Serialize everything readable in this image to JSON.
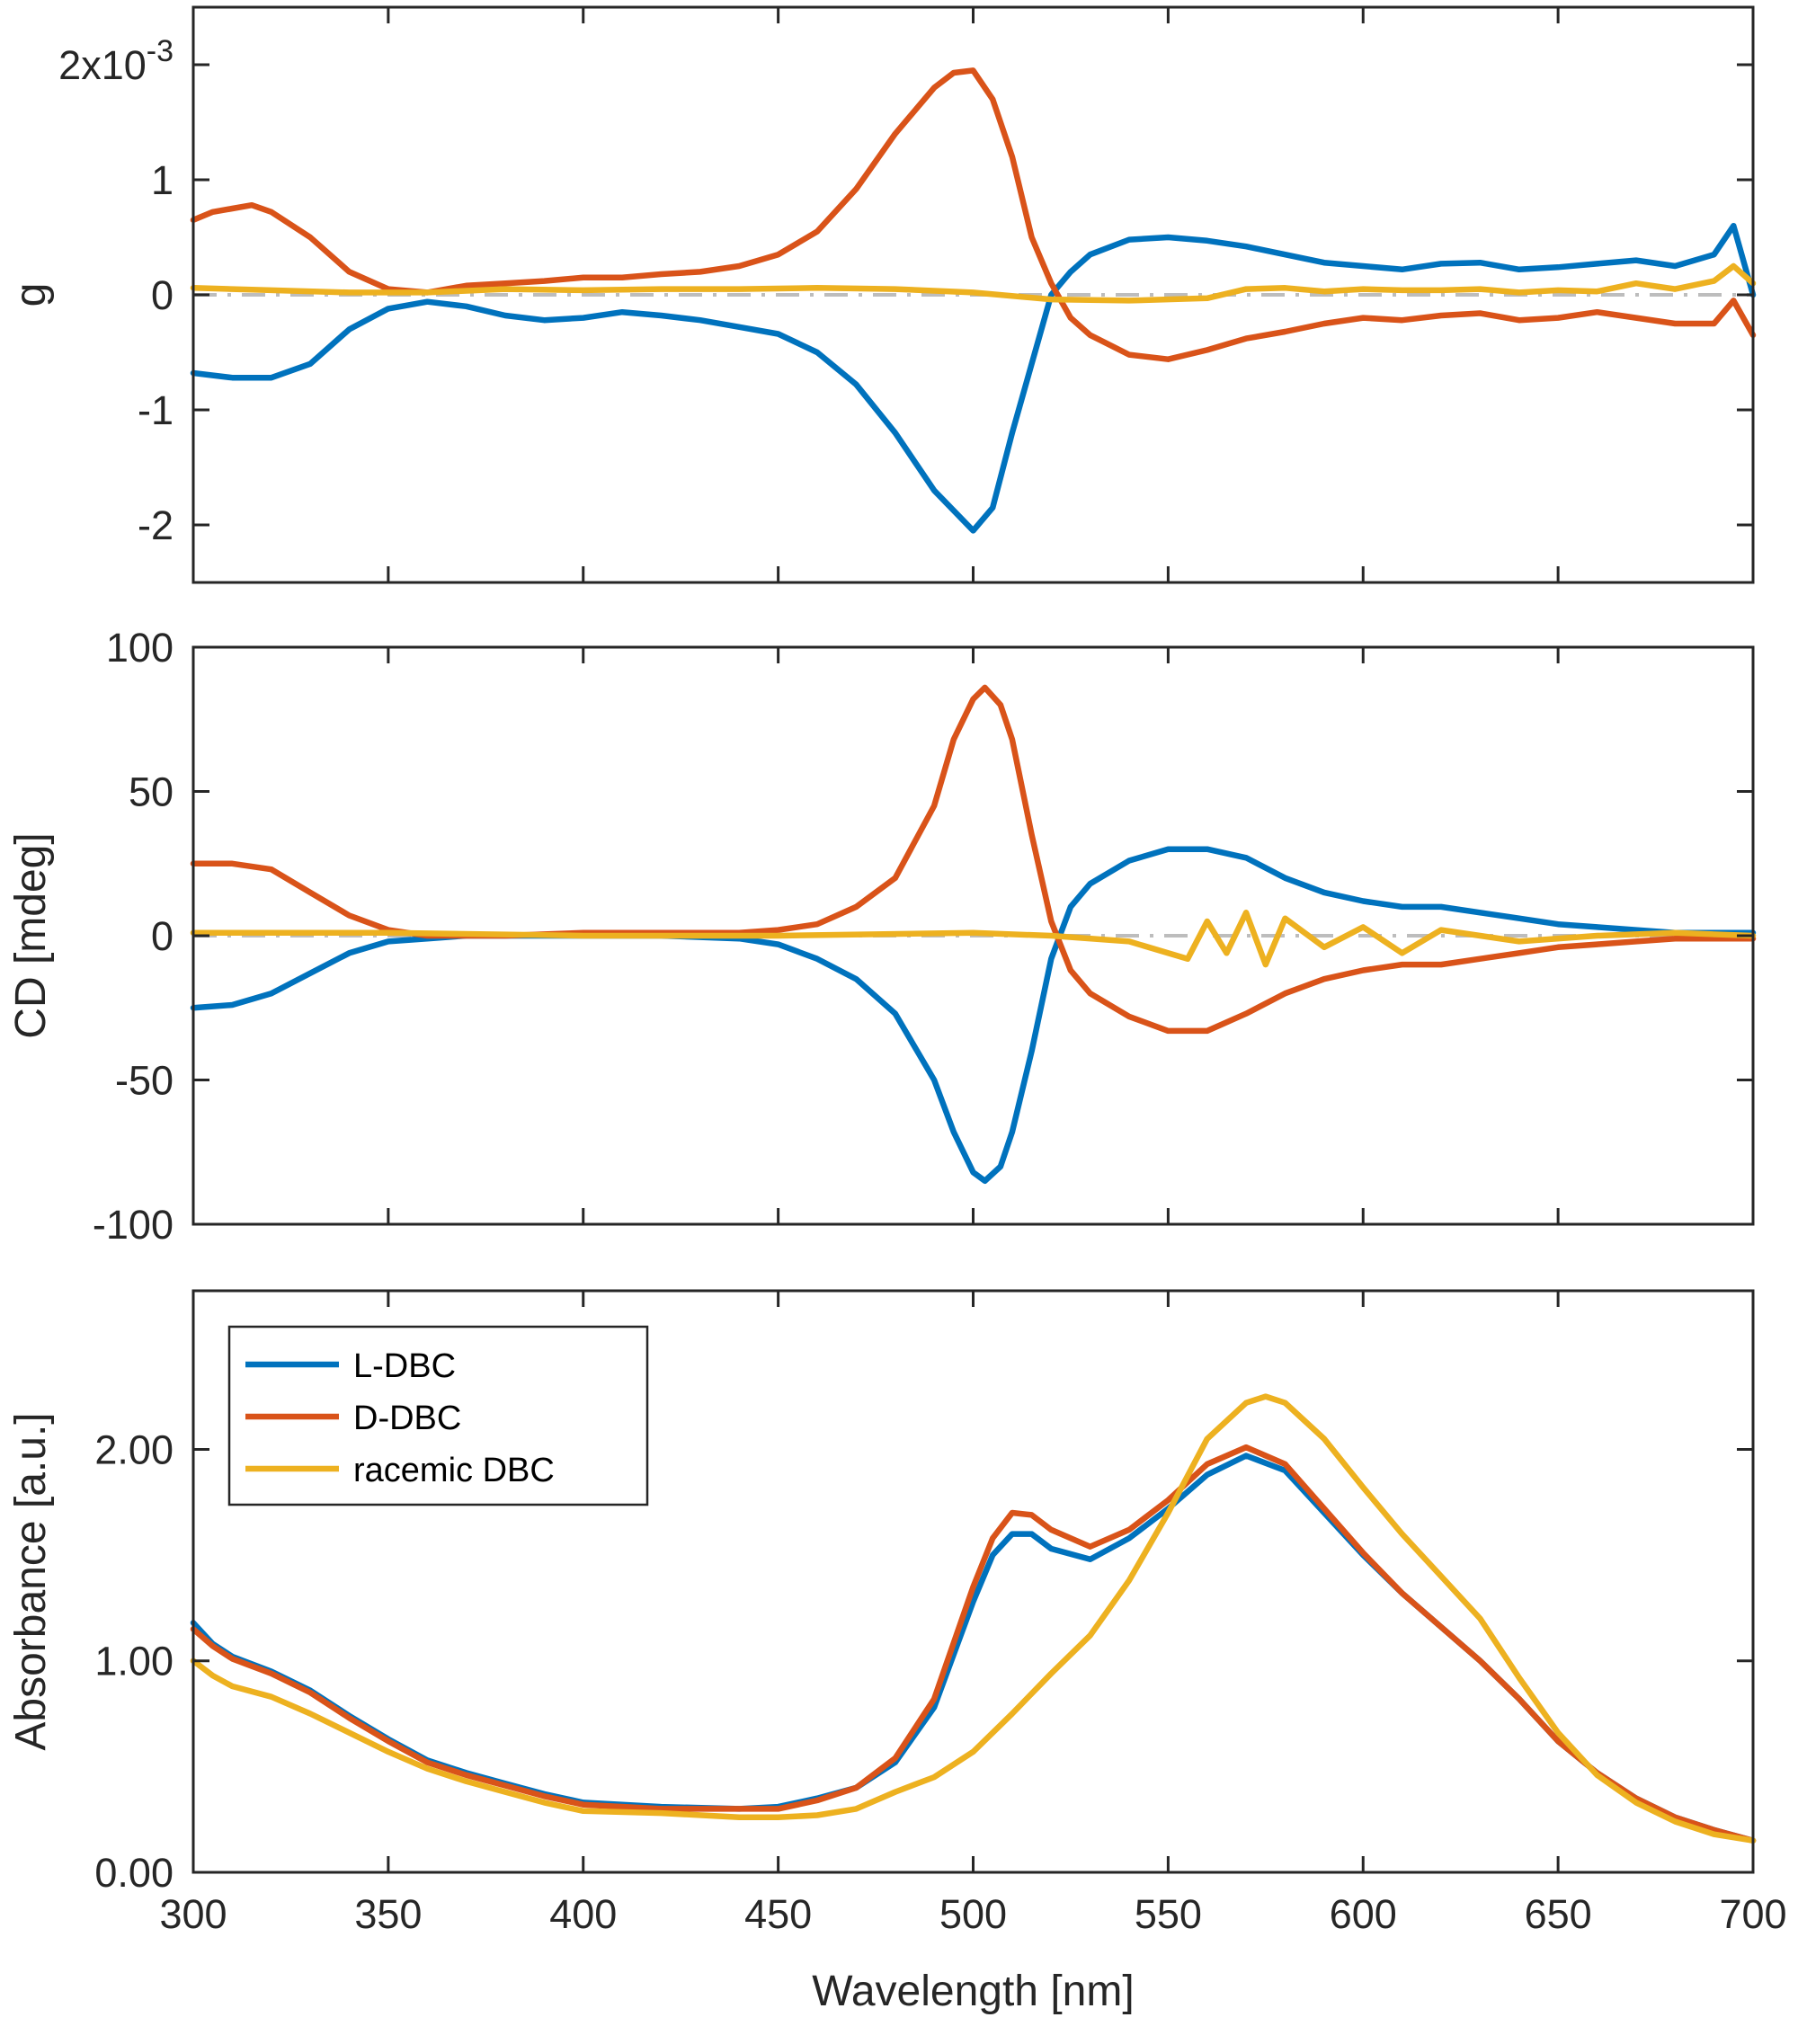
{
  "chart_data": [
    {
      "type": "line",
      "panel": "top",
      "ylabel": "g",
      "y_exponent_label": {
        "base": "2x10",
        "exp": "-3"
      },
      "ylim": [
        -2.5,
        2.5
      ],
      "y_ticks": [
        -2,
        -1,
        0,
        1,
        2
      ],
      "y_tick_labels": [
        "-2",
        "-1",
        "0",
        "1",
        ""
      ],
      "xlim": [
        300,
        700
      ],
      "zero_line": 0,
      "series": [
        {
          "name": "L-DBC",
          "color": "#0072BD",
          "x": [
            300,
            310,
            320,
            330,
            340,
            350,
            360,
            370,
            380,
            390,
            400,
            410,
            420,
            430,
            440,
            450,
            460,
            470,
            480,
            490,
            500,
            505,
            510,
            515,
            520,
            525,
            530,
            540,
            550,
            560,
            570,
            580,
            590,
            600,
            610,
            620,
            630,
            640,
            650,
            660,
            670,
            680,
            690,
            695,
            700
          ],
          "y": [
            -0.68,
            -0.72,
            -0.72,
            -0.6,
            -0.3,
            -0.12,
            -0.06,
            -0.1,
            -0.18,
            -0.22,
            -0.2,
            -0.15,
            -0.18,
            -0.22,
            -0.28,
            -0.34,
            -0.5,
            -0.78,
            -1.2,
            -1.7,
            -2.05,
            -1.85,
            -1.2,
            -0.6,
            0.0,
            0.2,
            0.35,
            0.48,
            0.5,
            0.47,
            0.42,
            0.35,
            0.28,
            0.25,
            0.22,
            0.27,
            0.28,
            0.22,
            0.24,
            0.27,
            0.3,
            0.25,
            0.35,
            0.6,
            0.0
          ]
        },
        {
          "name": "D-DBC",
          "color": "#D95319",
          "x": [
            300,
            305,
            310,
            315,
            320,
            330,
            340,
            350,
            360,
            370,
            380,
            390,
            400,
            410,
            420,
            430,
            440,
            450,
            460,
            470,
            480,
            490,
            495,
            500,
            505,
            510,
            515,
            520,
            525,
            530,
            540,
            550,
            560,
            570,
            580,
            590,
            600,
            610,
            620,
            630,
            640,
            650,
            660,
            670,
            680,
            690,
            695,
            700
          ],
          "y": [
            0.65,
            0.72,
            0.75,
            0.78,
            0.72,
            0.5,
            0.2,
            0.05,
            0.02,
            0.08,
            0.1,
            0.12,
            0.15,
            0.15,
            0.18,
            0.2,
            0.25,
            0.35,
            0.55,
            0.92,
            1.4,
            1.8,
            1.93,
            1.95,
            1.7,
            1.2,
            0.5,
            0.1,
            -0.2,
            -0.35,
            -0.52,
            -0.56,
            -0.48,
            -0.38,
            -0.32,
            -0.25,
            -0.2,
            -0.22,
            -0.18,
            -0.16,
            -0.22,
            -0.2,
            -0.15,
            -0.2,
            -0.25,
            -0.25,
            -0.05,
            -0.35
          ]
        },
        {
          "name": "racemic DBC",
          "color": "#EDB120",
          "x": [
            300,
            320,
            340,
            360,
            380,
            400,
            420,
            440,
            460,
            480,
            500,
            520,
            540,
            560,
            570,
            580,
            590,
            600,
            610,
            620,
            630,
            640,
            650,
            660,
            670,
            680,
            690,
            695,
            700
          ],
          "y": [
            0.06,
            0.04,
            0.02,
            0.02,
            0.05,
            0.04,
            0.05,
            0.05,
            0.06,
            0.05,
            0.02,
            -0.04,
            -0.05,
            -0.03,
            0.05,
            0.06,
            0.03,
            0.05,
            0.04,
            0.04,
            0.05,
            0.02,
            0.04,
            0.03,
            0.1,
            0.05,
            0.12,
            0.25,
            0.1
          ]
        }
      ]
    },
    {
      "type": "line",
      "panel": "middle",
      "ylabel": "CD [mdeg]",
      "ylim": [
        -100,
        100
      ],
      "y_ticks": [
        -100,
        -50,
        0,
        50,
        100
      ],
      "y_tick_labels": [
        "-100",
        "-50",
        "0",
        "50",
        "100"
      ],
      "xlim": [
        300,
        700
      ],
      "zero_line": 0,
      "series": [
        {
          "name": "L-DBC",
          "color": "#0072BD",
          "x": [
            300,
            310,
            320,
            330,
            340,
            350,
            360,
            370,
            380,
            400,
            420,
            440,
            450,
            460,
            470,
            480,
            490,
            495,
            500,
            503,
            507,
            510,
            515,
            520,
            525,
            530,
            540,
            550,
            560,
            570,
            580,
            590,
            600,
            610,
            620,
            630,
            640,
            650,
            660,
            670,
            680,
            690,
            700
          ],
          "y": [
            -25,
            -24,
            -20,
            -13,
            -6,
            -2,
            -1,
            0,
            0,
            0,
            0,
            -1,
            -3,
            -8,
            -15,
            -27,
            -50,
            -68,
            -82,
            -85,
            -80,
            -68,
            -40,
            -8,
            10,
            18,
            26,
            30,
            30,
            27,
            20,
            15,
            12,
            10,
            10,
            8,
            6,
            4,
            3,
            2,
            1,
            1,
            1
          ]
        },
        {
          "name": "D-DBC",
          "color": "#D95319",
          "x": [
            300,
            310,
            320,
            330,
            340,
            350,
            360,
            370,
            380,
            400,
            420,
            440,
            450,
            460,
            470,
            480,
            490,
            495,
            500,
            503,
            507,
            510,
            515,
            520,
            525,
            530,
            540,
            550,
            560,
            570,
            580,
            590,
            600,
            610,
            620,
            630,
            640,
            650,
            660,
            670,
            680,
            690,
            700
          ],
          "y": [
            25,
            25,
            23,
            15,
            7,
            2,
            0,
            0,
            0,
            1,
            1,
            1,
            2,
            4,
            10,
            20,
            45,
            68,
            82,
            86,
            80,
            68,
            35,
            5,
            -12,
            -20,
            -28,
            -33,
            -33,
            -27,
            -20,
            -15,
            -12,
            -10,
            -10,
            -8,
            -6,
            -4,
            -3,
            -2,
            -1,
            -1,
            -1
          ]
        },
        {
          "name": "racemic DBC",
          "color": "#EDB120",
          "x": [
            300,
            350,
            400,
            450,
            500,
            520,
            540,
            555,
            560,
            565,
            570,
            575,
            580,
            590,
            600,
            610,
            620,
            640,
            660,
            680,
            700
          ],
          "y": [
            1,
            1,
            0,
            0,
            1,
            0,
            -2,
            -8,
            5,
            -6,
            8,
            -10,
            6,
            -4,
            3,
            -6,
            2,
            -2,
            0,
            1,
            0
          ]
        }
      ]
    },
    {
      "type": "line",
      "panel": "bottom",
      "ylabel": "Absorbance [a.u.]",
      "xlabel": "Wavelength [nm]",
      "ylim": [
        0,
        2.75
      ],
      "y_ticks": [
        0,
        1,
        2
      ],
      "y_tick_labels": [
        "0.00",
        "1.00",
        "2.00"
      ],
      "xlim": [
        300,
        700
      ],
      "x_ticks": [
        300,
        350,
        400,
        450,
        500,
        550,
        600,
        650,
        700
      ],
      "x_tick_labels": [
        "300",
        "350",
        "400",
        "450",
        "500",
        "550",
        "600",
        "650",
        "700"
      ],
      "legend": {
        "location": "top-left",
        "entries": [
          "L-DBC",
          "D-DBC",
          "racemic DBC"
        ]
      },
      "series": [
        {
          "name": "L-DBC",
          "color": "#0072BD",
          "x": [
            300,
            305,
            310,
            320,
            330,
            340,
            350,
            360,
            370,
            380,
            390,
            400,
            420,
            440,
            450,
            460,
            470,
            480,
            490,
            500,
            505,
            510,
            515,
            520,
            530,
            540,
            550,
            560,
            570,
            580,
            590,
            600,
            610,
            620,
            630,
            640,
            650,
            660,
            670,
            680,
            690,
            700
          ],
          "y": [
            1.18,
            1.08,
            1.02,
            0.95,
            0.86,
            0.74,
            0.63,
            0.53,
            0.47,
            0.42,
            0.37,
            0.33,
            0.31,
            0.3,
            0.31,
            0.35,
            0.4,
            0.52,
            0.78,
            1.28,
            1.5,
            1.6,
            1.6,
            1.53,
            1.48,
            1.58,
            1.72,
            1.88,
            1.97,
            1.9,
            1.7,
            1.5,
            1.32,
            1.16,
            1.0,
            0.82,
            0.62,
            0.47,
            0.35,
            0.26,
            0.2,
            0.15
          ]
        },
        {
          "name": "D-DBC",
          "color": "#D95319",
          "x": [
            300,
            305,
            310,
            320,
            330,
            340,
            350,
            360,
            370,
            380,
            390,
            400,
            420,
            440,
            450,
            460,
            470,
            480,
            490,
            500,
            505,
            510,
            515,
            520,
            530,
            540,
            550,
            560,
            570,
            580,
            590,
            600,
            610,
            620,
            630,
            640,
            650,
            660,
            670,
            680,
            690,
            700
          ],
          "y": [
            1.15,
            1.07,
            1.01,
            0.94,
            0.85,
            0.73,
            0.62,
            0.52,
            0.46,
            0.41,
            0.36,
            0.32,
            0.3,
            0.3,
            0.3,
            0.34,
            0.4,
            0.54,
            0.82,
            1.35,
            1.58,
            1.7,
            1.69,
            1.62,
            1.54,
            1.62,
            1.76,
            1.93,
            2.01,
            1.93,
            1.72,
            1.51,
            1.32,
            1.16,
            1.0,
            0.82,
            0.62,
            0.47,
            0.35,
            0.26,
            0.2,
            0.15
          ]
        },
        {
          "name": "racemic DBC",
          "color": "#EDB120",
          "x": [
            300,
            305,
            310,
            320,
            330,
            340,
            350,
            360,
            370,
            380,
            390,
            400,
            420,
            440,
            450,
            460,
            470,
            480,
            490,
            500,
            510,
            520,
            530,
            540,
            550,
            560,
            570,
            575,
            580,
            590,
            600,
            610,
            620,
            630,
            640,
            650,
            660,
            670,
            680,
            690,
            700
          ],
          "y": [
            1.0,
            0.93,
            0.88,
            0.83,
            0.75,
            0.66,
            0.57,
            0.49,
            0.43,
            0.38,
            0.33,
            0.29,
            0.28,
            0.26,
            0.26,
            0.27,
            0.3,
            0.38,
            0.45,
            0.57,
            0.75,
            0.94,
            1.12,
            1.38,
            1.7,
            2.05,
            2.22,
            2.25,
            2.22,
            2.05,
            1.82,
            1.6,
            1.4,
            1.2,
            0.92,
            0.66,
            0.46,
            0.33,
            0.24,
            0.18,
            0.15
          ]
        }
      ]
    }
  ]
}
